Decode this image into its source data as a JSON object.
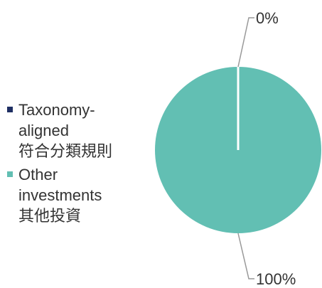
{
  "chart_data": {
    "type": "pie",
    "categories": [
      "Taxonomy-aligned\n符合分類規則",
      "Other investments\n其他投資"
    ],
    "values": [
      0,
      100
    ],
    "value_labels": [
      "0%",
      "100%"
    ],
    "colors": [
      "#1f2f63",
      "#62bfb3"
    ]
  }
}
